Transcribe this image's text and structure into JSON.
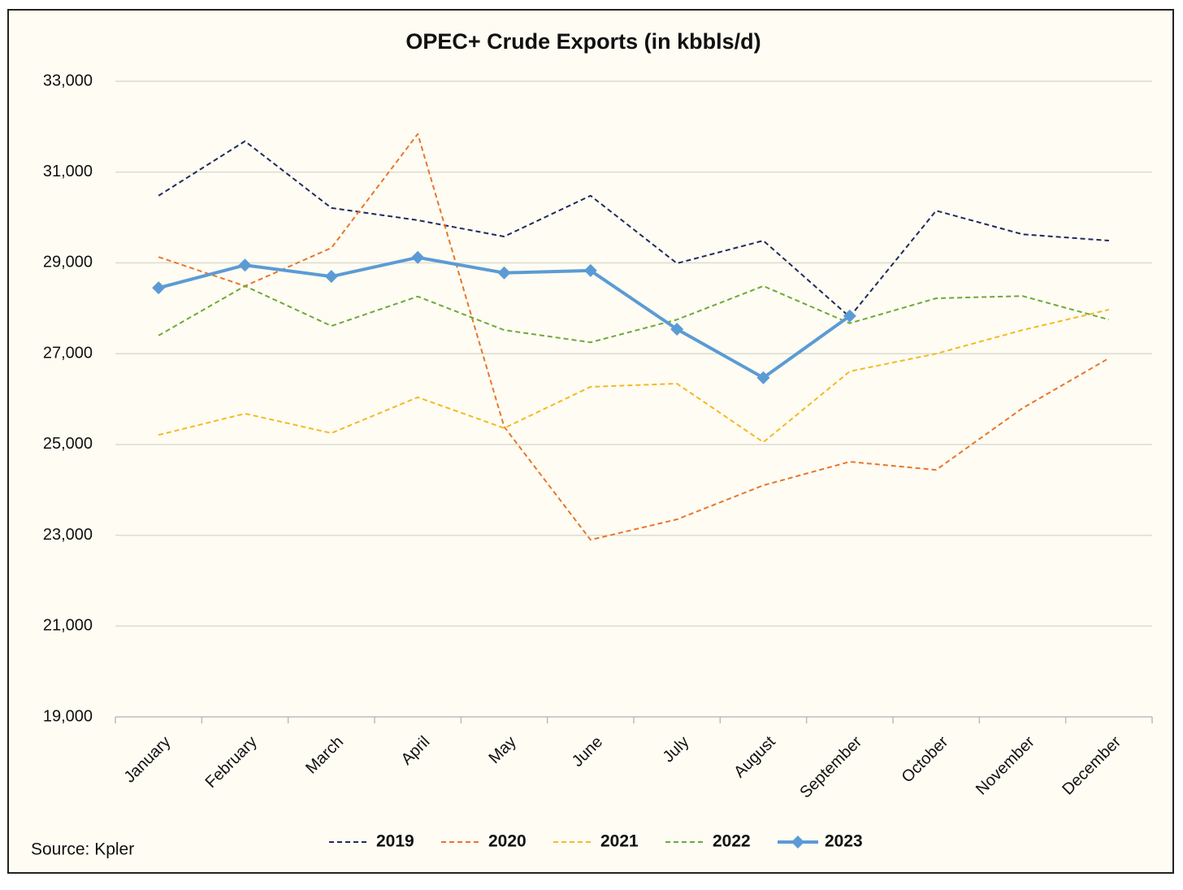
{
  "chart_data": {
    "type": "line",
    "title": "OPEC+ Crude Exports (in kbbls/d)",
    "source": "Source: Kpler",
    "categories": [
      "January",
      "February",
      "March",
      "April",
      "May",
      "June",
      "July",
      "August",
      "September",
      "October",
      "November",
      "December"
    ],
    "ylim": [
      19000,
      33000
    ],
    "yticks": [
      {
        "value": 19000,
        "label": "19,000"
      },
      {
        "value": 21000,
        "label": "21,000"
      },
      {
        "value": 23000,
        "label": "23,000"
      },
      {
        "value": 25000,
        "label": "25,000"
      },
      {
        "value": 27000,
        "label": "27,000"
      },
      {
        "value": 29000,
        "label": "29,000"
      },
      {
        "value": 31000,
        "label": "31,000"
      },
      {
        "value": 33000,
        "label": "33,000"
      }
    ],
    "grid": true,
    "legend": "bottom",
    "series": [
      {
        "name": "2019",
        "color": "#1f2a5c",
        "dashed": true,
        "values": [
          30480,
          31680,
          30210,
          29940,
          29580,
          30480,
          28990,
          29490,
          27810,
          30150,
          29630,
          29490
        ]
      },
      {
        "name": "2020",
        "color": "#e8762b",
        "dashed": true,
        "values": [
          29130,
          28490,
          29330,
          31840,
          25390,
          22900,
          23350,
          24100,
          24620,
          24440,
          25800,
          26900
        ]
      },
      {
        "name": "2021",
        "color": "#f5b921",
        "dashed": true,
        "values": [
          25210,
          25680,
          25250,
          26040,
          25360,
          26270,
          26340,
          25050,
          26610,
          27000,
          27520,
          27970
        ]
      },
      {
        "name": "2022",
        "color": "#6fa83a",
        "dashed": true,
        "values": [
          27400,
          28490,
          27610,
          28260,
          27520,
          27250,
          27750,
          28490,
          27670,
          28220,
          28270,
          27750
        ]
      },
      {
        "name": "2023",
        "color": "#5b9bd5",
        "dashed": false,
        "marker": "diamond",
        "values": [
          28450,
          28950,
          28700,
          29120,
          28780,
          28830,
          27540,
          26470,
          27830,
          null,
          null,
          null
        ]
      }
    ]
  }
}
